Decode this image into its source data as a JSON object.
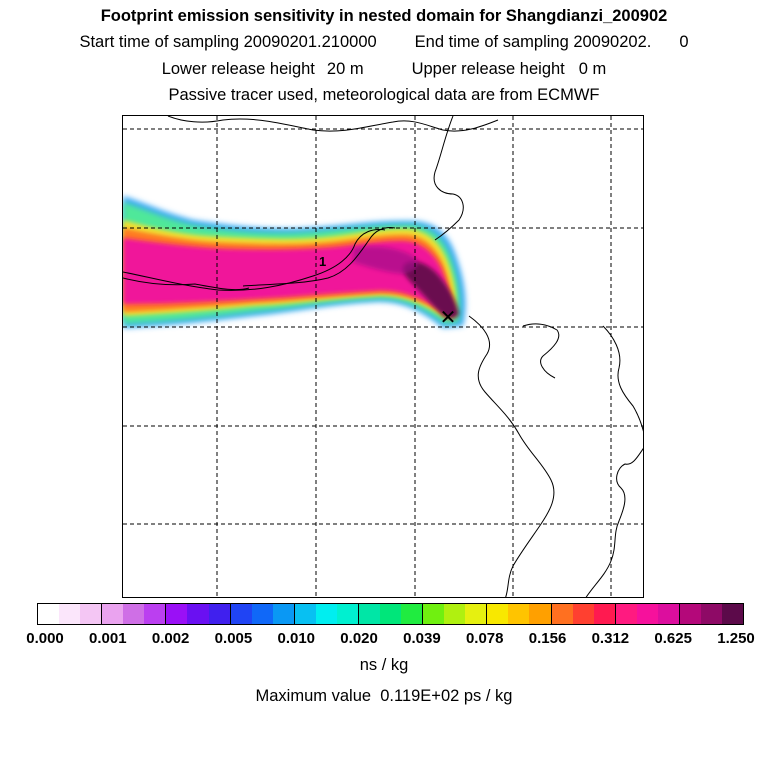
{
  "header": {
    "title": "Footprint emission sensitivity in nested domain for Shangdianzi_200902",
    "start_label": "Start time of sampling 20090201.210000",
    "end_label": "End time of sampling 20090202.",
    "end_suffix": "0",
    "lower_label": "Lower release height",
    "lower_value": "20 m",
    "upper_label": "Upper release height",
    "upper_value": "0 m",
    "tracer_note": "Passive tracer used, meteorological data are from ECMWF"
  },
  "map": {
    "contour_label": "1",
    "receptor_symbol": "✕"
  },
  "colorbar": {
    "swatches": [
      "#ffffff",
      "#fbe6fb",
      "#f4c6f4",
      "#eaa3ef",
      "#cf6fe6",
      "#bb3ff0",
      "#9a10f6",
      "#6a10f2",
      "#4020ee",
      "#2044f4",
      "#1068f8",
      "#0a98f4",
      "#08c0f2",
      "#00eef0",
      "#00f0d0",
      "#00e6a6",
      "#00e67a",
      "#20ec40",
      "#70f010",
      "#b0f010",
      "#e6f010",
      "#f8e800",
      "#ffc400",
      "#ffa000",
      "#ff7020",
      "#ff4030",
      "#ff1a50",
      "#ff1a80",
      "#f6119c",
      "#dc0e9e",
      "#b4087a",
      "#8e0a66",
      "#5c0a4a"
    ],
    "tick_labels": [
      "0.000",
      "0.001",
      "0.002",
      "0.005",
      "0.010",
      "0.020",
      "0.039",
      "0.078",
      "0.156",
      "0.312",
      "0.625",
      "1.250"
    ],
    "unit": "ns / kg"
  },
  "footer": {
    "max_label": "Maximum value",
    "max_value": "0.119E+02 ps / kg"
  }
}
